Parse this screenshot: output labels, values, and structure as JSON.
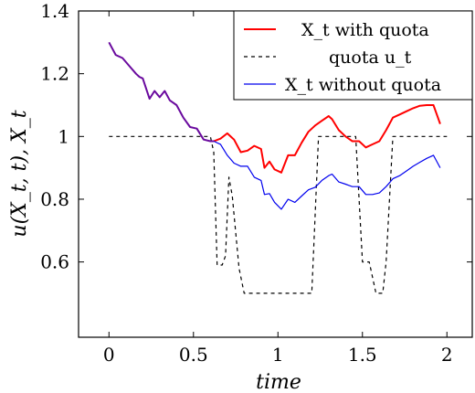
{
  "chart_data": {
    "type": "line",
    "xlabel": "time",
    "ylabel": "u(X_t, t),    X_t",
    "xlim": [
      -0.18,
      2.15
    ],
    "ylim": [
      0.36,
      1.4
    ],
    "x_ticks": [
      0,
      0.5,
      1,
      1.5,
      2
    ],
    "x_tick_labels": [
      "0",
      "0.5",
      "1",
      "1.5",
      "2"
    ],
    "y_ticks": [
      0.6,
      0.8,
      1.0,
      1.2,
      1.4
    ],
    "y_tick_labels": [
      "0.6",
      "0.8",
      "1",
      "1.2",
      "1.4"
    ],
    "legend_position": "top-right",
    "series": [
      {
        "name": "X_t with quota",
        "color": "#ff0000",
        "style": "solid",
        "x": [
          0.62,
          0.66,
          0.7,
          0.74,
          0.78,
          0.82,
          0.86,
          0.9,
          0.92,
          0.95,
          0.98,
          1.02,
          1.06,
          1.1,
          1.14,
          1.18,
          1.22,
          1.26,
          1.3,
          1.32,
          1.36,
          1.4,
          1.44,
          1.48,
          1.52,
          1.56,
          1.6,
          1.64,
          1.68,
          1.72,
          1.76,
          1.8,
          1.84,
          1.88,
          1.92,
          1.96
        ],
        "y": [
          0.985,
          0.993,
          1.01,
          0.99,
          0.95,
          0.955,
          0.97,
          0.96,
          0.9,
          0.92,
          0.895,
          0.885,
          0.94,
          0.94,
          0.98,
          1.015,
          1.035,
          1.05,
          1.065,
          1.055,
          1.02,
          1.0,
          0.985,
          0.985,
          0.965,
          0.975,
          0.985,
          1.02,
          1.06,
          1.07,
          1.08,
          1.09,
          1.098,
          1.1,
          1.1,
          1.04
        ]
      },
      {
        "name": "quota u_t",
        "color": "#000000",
        "style": "dashed",
        "x": [
          0,
          0.6,
          0.62,
          0.64,
          0.67,
          0.69,
          0.71,
          0.73,
          0.77,
          0.8,
          1.2,
          1.24,
          1.46,
          1.5,
          1.54,
          1.58,
          1.62,
          1.64,
          1.68,
          2.0
        ],
        "y": [
          1.0,
          1.0,
          0.95,
          0.59,
          0.59,
          0.62,
          0.87,
          0.81,
          0.58,
          0.5,
          0.5,
          1.0,
          1.0,
          0.6,
          0.6,
          0.5,
          0.5,
          0.6,
          1.0,
          1.0
        ]
      },
      {
        "name": "X_t without quota",
        "color": "#0000ee",
        "style": "solid",
        "x": [
          0.62,
          0.66,
          0.7,
          0.74,
          0.78,
          0.82,
          0.86,
          0.9,
          0.92,
          0.95,
          0.98,
          1.02,
          1.06,
          1.1,
          1.14,
          1.18,
          1.22,
          1.26,
          1.3,
          1.32,
          1.36,
          1.4,
          1.44,
          1.48,
          1.52,
          1.56,
          1.6,
          1.64,
          1.68,
          1.72,
          1.76,
          1.8,
          1.84,
          1.88,
          1.92,
          1.96
        ],
        "y": [
          0.985,
          0.975,
          0.94,
          0.915,
          0.905,
          0.905,
          0.87,
          0.86,
          0.815,
          0.818,
          0.79,
          0.768,
          0.8,
          0.79,
          0.81,
          0.83,
          0.838,
          0.86,
          0.875,
          0.88,
          0.855,
          0.848,
          0.84,
          0.84,
          0.815,
          0.815,
          0.82,
          0.84,
          0.865,
          0.875,
          0.89,
          0.905,
          0.918,
          0.93,
          0.94,
          0.9
        ]
      },
      {
        "name": "",
        "color": "#6a0a9e",
        "style": "solid",
        "x": [
          0,
          0.04,
          0.08,
          0.12,
          0.16,
          0.18,
          0.2,
          0.24,
          0.27,
          0.3,
          0.33,
          0.36,
          0.4,
          0.44,
          0.48,
          0.52,
          0.56,
          0.6,
          0.62
        ],
        "y": [
          1.3,
          1.26,
          1.25,
          1.225,
          1.2,
          1.19,
          1.185,
          1.12,
          1.145,
          1.125,
          1.145,
          1.115,
          1.1,
          1.06,
          1.03,
          1.025,
          0.99,
          0.985,
          0.985
        ]
      }
    ]
  }
}
